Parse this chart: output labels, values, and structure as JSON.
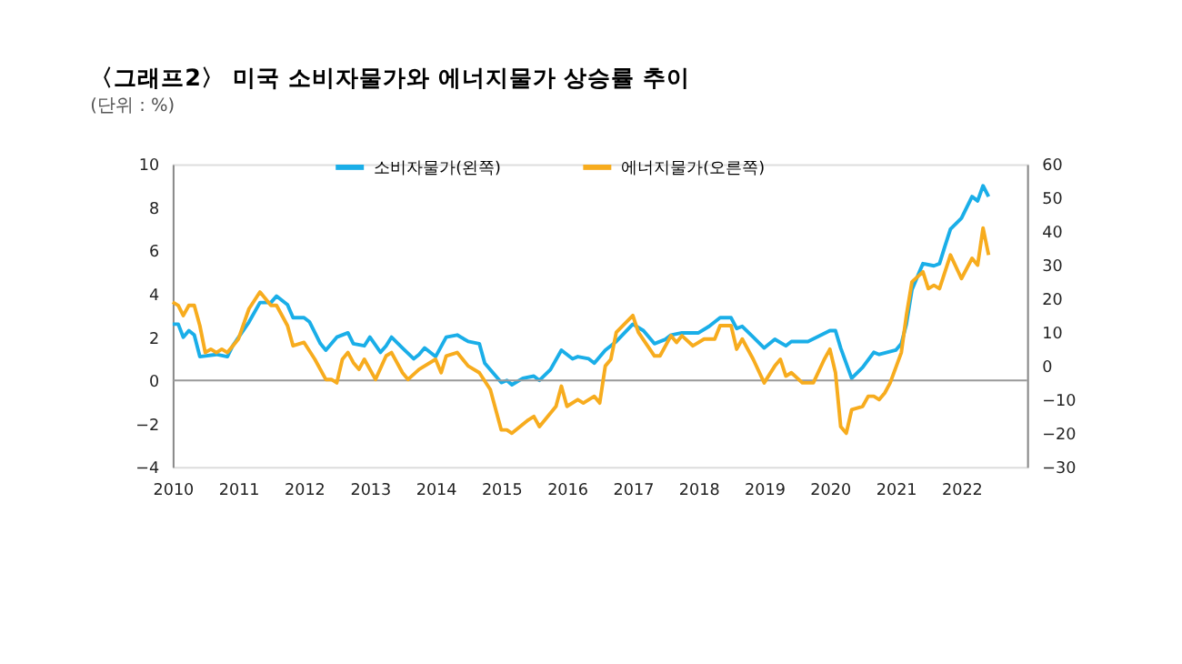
{
  "chart_data": {
    "type": "line",
    "title": "〈그래프2〉 미국 소비자물가와 에너지물가 상승률 추이",
    "subtitle": "(단위 : %)",
    "x": [
      "2010-01",
      "2010-02",
      "2010-03",
      "2010-04",
      "2010-05",
      "2010-06",
      "2010-09",
      "2010-11",
      "2010-12",
      "2011-03",
      "2011-05",
      "2011-07",
      "2011-08",
      "2011-10",
      "2011-11",
      "2012-01",
      "2012-02",
      "2012-04",
      "2012-05",
      "2012-07",
      "2012-09",
      "2012-10",
      "2012-12",
      "2013-01",
      "2013-03",
      "2013-04",
      "2013-05",
      "2013-07",
      "2013-09",
      "2013-10",
      "2013-11",
      "2014-01",
      "2014-03",
      "2014-05",
      "2014-07",
      "2014-09",
      "2014-10",
      "2015-01",
      "2015-02",
      "2015-03",
      "2015-05",
      "2015-07",
      "2015-08",
      "2015-10",
      "2015-12",
      "2016-02",
      "2016-03",
      "2016-05",
      "2016-06",
      "2016-08",
      "2016-10",
      "2017-01",
      "2017-03",
      "2017-05",
      "2017-07",
      "2017-08",
      "2017-10",
      "2018-01",
      "2018-03",
      "2018-05",
      "2018-07",
      "2018-08",
      "2018-09",
      "2018-11",
      "2019-01",
      "2019-03",
      "2019-05",
      "2019-06",
      "2019-09",
      "2020-01",
      "2020-02",
      "2020-03",
      "2020-05",
      "2020-07",
      "2020-09",
      "2020-10",
      "2021-01",
      "2021-02",
      "2021-03",
      "2021-04",
      "2021-06",
      "2021-08",
      "2021-09",
      "2021-10",
      "2021-11",
      "2022-01",
      "2022-03",
      "2022-04",
      "2022-05",
      "2022-06"
    ],
    "series": [
      {
        "name": "소비자물가(왼쪽)",
        "color": "#1aaee8",
        "values": [
          2.6,
          2.6,
          2.0,
          2.3,
          2.1,
          1.1,
          1.2,
          1.1,
          1.6,
          2.7,
          3.6,
          3.6,
          3.9,
          3.5,
          2.9,
          2.9,
          2.7,
          1.7,
          1.4,
          2.0,
          2.2,
          1.7,
          1.6,
          2.0,
          1.3,
          1.6,
          2.0,
          1.5,
          1.0,
          1.2,
          1.5,
          1.1,
          2.0,
          2.1,
          1.8,
          1.7,
          0.8,
          -0.1,
          0.0,
          -0.2,
          0.1,
          0.2,
          0.0,
          0.5,
          1.4,
          1.0,
          1.1,
          1.0,
          0.8,
          1.4,
          1.8,
          2.6,
          2.3,
          1.7,
          1.9,
          2.1,
          2.2,
          2.2,
          2.5,
          2.9,
          2.9,
          2.4,
          2.5,
          2.0,
          1.5,
          1.9,
          1.6,
          1.8,
          1.8,
          2.3,
          2.3,
          1.5,
          0.1,
          0.6,
          1.3,
          1.2,
          1.4,
          1.7,
          2.6,
          4.2,
          5.4,
          5.3,
          5.4,
          6.2,
          7.0,
          7.5,
          8.5,
          8.3,
          9.0,
          8.5
        ]
      },
      {
        "name": "에너지물가(오른쪽)",
        "color": "#f7ac1e",
        "axis": "y2",
        "x": [
          "2010-01",
          "2010-02",
          "2010-03",
          "2010-04",
          "2010-05",
          "2010-06",
          "2010-07",
          "2010-08",
          "2010-09",
          "2010-10",
          "2010-11",
          "2011-01",
          "2011-03",
          "2011-05",
          "2011-07",
          "2011-08",
          "2011-10",
          "2011-11",
          "2012-01",
          "2012-03",
          "2012-05",
          "2012-06",
          "2012-07",
          "2012-08",
          "2012-09",
          "2012-10",
          "2012-11",
          "2012-12",
          "2013-02",
          "2013-04",
          "2013-05",
          "2013-07",
          "2013-08",
          "2013-10",
          "2014-01",
          "2014-02",
          "2014-03",
          "2014-05",
          "2014-07",
          "2014-09",
          "2014-11",
          "2015-01",
          "2015-02",
          "2015-03",
          "2015-06",
          "2015-07",
          "2015-08",
          "2015-11",
          "2015-12",
          "2016-01",
          "2016-03",
          "2016-04",
          "2016-06",
          "2016-07",
          "2016-08",
          "2016-09",
          "2016-10",
          "2017-01",
          "2017-02",
          "2017-05",
          "2017-06",
          "2017-08",
          "2017-09",
          "2017-10",
          "2017-12",
          "2018-02",
          "2018-04",
          "2018-05",
          "2018-07",
          "2018-08",
          "2018-09",
          "2018-11",
          "2019-01",
          "2019-03",
          "2019-04",
          "2019-05",
          "2019-06",
          "2019-08",
          "2019-10",
          "2019-12",
          "2020-01",
          "2020-02",
          "2020-03",
          "2020-04",
          "2020-05",
          "2020-07",
          "2020-08",
          "2020-09",
          "2020-10",
          "2020-11",
          "2020-12",
          "2021-02",
          "2021-03",
          "2021-04",
          "2021-06",
          "2021-07",
          "2021-08",
          "2021-09",
          "2021-11",
          "2022-01",
          "2022-03",
          "2022-04",
          "2022-05",
          "2022-06"
        ],
        "values": [
          19,
          18,
          15,
          18,
          18,
          12,
          4,
          5,
          4,
          5,
          4,
          8,
          17,
          22,
          18,
          18,
          12,
          6,
          7,
          2,
          -4,
          -4,
          -5,
          2,
          4,
          1,
          -1,
          2,
          -4,
          3,
          4,
          -2,
          -4,
          -1,
          2,
          -2,
          3,
          4,
          0,
          -2,
          -7,
          -19,
          -19,
          -20,
          -16,
          -15,
          -18,
          -12,
          -6,
          -12,
          -10,
          -11,
          -9,
          -11,
          0,
          2,
          10,
          15,
          10,
          3,
          3,
          9,
          7,
          9,
          6,
          8,
          8,
          12,
          12,
          5,
          8,
          2,
          -5,
          0,
          2,
          -3,
          -2,
          -5,
          -5,
          2,
          5,
          -2,
          -18,
          -20,
          -13,
          -12,
          -9,
          -9,
          -10,
          -8,
          -5,
          4,
          15,
          25,
          28,
          23,
          24,
          23,
          33,
          26,
          32,
          30,
          41,
          33
        ]
      }
    ],
    "xlim": [
      "2010-01",
      "2023-01"
    ],
    "xticks": [
      "2010",
      "2011",
      "2012",
      "2013",
      "2014",
      "2015",
      "2016",
      "2017",
      "2018",
      "2019",
      "2020",
      "2021",
      "2022"
    ],
    "ylim": [
      -4,
      10
    ],
    "yticks": [
      -4,
      -2,
      0,
      2,
      4,
      6,
      8,
      10
    ],
    "y2lim": [
      -30,
      60
    ],
    "y2ticks": [
      -30,
      -20,
      -10,
      0,
      10,
      20,
      30,
      40,
      50,
      60
    ],
    "ref_lines": [
      {
        "axis": "y",
        "value": 0,
        "color": "#999999"
      }
    ],
    "legend": "top",
    "grid": false
  }
}
